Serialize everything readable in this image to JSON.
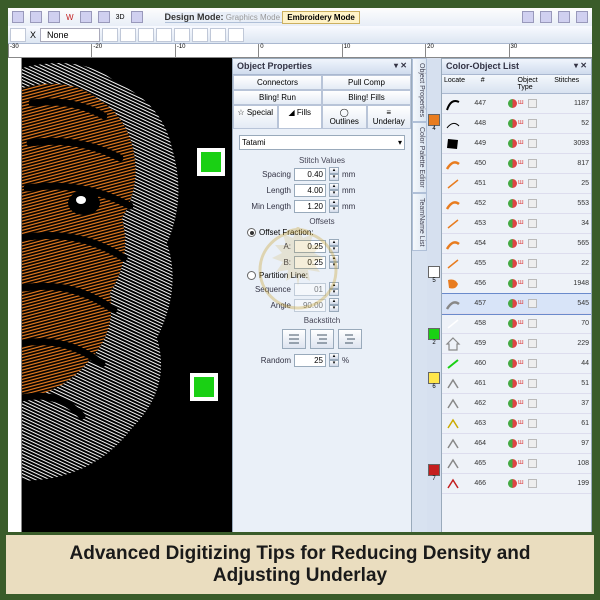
{
  "caption": "Advanced Digitizing Tips for Reducing Density and Adjusting Underlay",
  "modes": {
    "label": "Design Mode:",
    "inactive": "Graphics Mode",
    "active": "Embroidery Mode"
  },
  "selector": {
    "x_label": "X",
    "value": "None"
  },
  "ruler_marks": [
    "-30",
    "-20",
    "-10",
    "0",
    "10",
    "20",
    "30"
  ],
  "object_properties": {
    "title": "Object Properties",
    "tabs_row1": [
      {
        "label": "Connectors"
      },
      {
        "label": "Pull Comp"
      }
    ],
    "tabs_row2": [
      {
        "label": "Bling! Run"
      },
      {
        "label": "Bling! Fills"
      }
    ],
    "tabs_row3": [
      {
        "icon": "star",
        "label": "Special"
      },
      {
        "icon": "fills",
        "label": "Fills",
        "selected": true
      },
      {
        "icon": "outline",
        "label": "Outlines"
      },
      {
        "icon": "under",
        "label": "Underlay"
      }
    ],
    "fill_type": "Tatami",
    "groups": {
      "stitch": {
        "title": "Stitch Values",
        "fields": [
          {
            "label": "Spacing",
            "value": "0.40",
            "unit": "mm"
          },
          {
            "label": "Length",
            "value": "4.00",
            "unit": "mm"
          },
          {
            "label": "Min Length",
            "value": "1.20",
            "unit": "mm"
          }
        ]
      },
      "offsets": {
        "title": "Offsets",
        "radio1": {
          "label": "Offset Fraction:",
          "on": true
        },
        "fields": [
          {
            "label": "A:",
            "value": "0.25"
          },
          {
            "label": "B:",
            "value": "0.25"
          }
        ],
        "radio2": {
          "label": "Partition Line:",
          "on": false
        },
        "fields2": [
          {
            "label": "Sequence",
            "value": "01"
          },
          {
            "label": "Angle",
            "value": "90.00"
          }
        ]
      },
      "backstitch": {
        "title": "Backstitch"
      },
      "random": {
        "label": "Random",
        "value": "25",
        "unit": "%"
      }
    }
  },
  "side_tabs": [
    "Object Properties",
    "Color Palette Editor",
    "TeamName List"
  ],
  "color_list": {
    "title": "Color-Object List",
    "headers": [
      "Locate",
      "#",
      "Object Type",
      "Stitches"
    ],
    "left_swatches": [
      {
        "color": "#e87c1f",
        "num": "4"
      },
      {
        "color": "#ffffff",
        "num": "5"
      },
      {
        "color": "#1ad014",
        "num": "2"
      },
      {
        "color": "#ffe64a",
        "num": "6"
      },
      {
        "color": "#c41e1e",
        "num": "7"
      }
    ],
    "rows": [
      {
        "num": "447",
        "stitches": "1187",
        "color": "#000",
        "shape": "curve-b"
      },
      {
        "num": "448",
        "stitches": "52",
        "color": "#000",
        "shape": "curve-w"
      },
      {
        "num": "449",
        "stitches": "3093",
        "color": "#000",
        "shape": "blob"
      },
      {
        "num": "450",
        "stitches": "817",
        "color": "#e87c1f",
        "shape": "stroke"
      },
      {
        "num": "451",
        "stitches": "25",
        "color": "#e87c1f",
        "shape": "dash"
      },
      {
        "num": "452",
        "stitches": "553",
        "color": "#e87c1f",
        "shape": "stroke"
      },
      {
        "num": "453",
        "stitches": "34",
        "color": "#e87c1f",
        "shape": "dash"
      },
      {
        "num": "454",
        "stitches": "565",
        "color": "#e87c1f",
        "shape": "stroke"
      },
      {
        "num": "455",
        "stitches": "22",
        "color": "#e87c1f",
        "shape": "dash"
      },
      {
        "num": "456",
        "stitches": "1948",
        "color": "#e87c1f",
        "shape": "blob-o"
      },
      {
        "num": "457",
        "stitches": "545",
        "color": "#fff",
        "shape": "stroke-w",
        "selected": true
      },
      {
        "num": "458",
        "stitches": "70",
        "color": "#fff",
        "shape": "dash"
      },
      {
        "num": "459",
        "stitches": "229",
        "color": "#fff",
        "shape": "home"
      },
      {
        "num": "460",
        "stitches": "44",
        "color": "#1ad014",
        "shape": "dash-g"
      },
      {
        "num": "461",
        "stitches": "51",
        "color": "#fff",
        "shape": "chev"
      },
      {
        "num": "462",
        "stitches": "37",
        "color": "#fff",
        "shape": "chev"
      },
      {
        "num": "463",
        "stitches": "61",
        "color": "#ffe64a",
        "shape": "chev-y"
      },
      {
        "num": "464",
        "stitches": "97",
        "color": "#fff",
        "shape": "chev"
      },
      {
        "num": "465",
        "stitches": "108",
        "color": "#fff",
        "shape": "chev"
      },
      {
        "num": "466",
        "stitches": "199",
        "color": "#c41e1e",
        "shape": "chev-r"
      }
    ]
  },
  "colors": {
    "frame": "#3a5c2a",
    "caption_bg": "#eaddbf",
    "panel_bg": "#e8eef7",
    "accent_orange": "#e87c1f",
    "accent_red": "#c41e1e",
    "accent_green": "#1ad014"
  }
}
